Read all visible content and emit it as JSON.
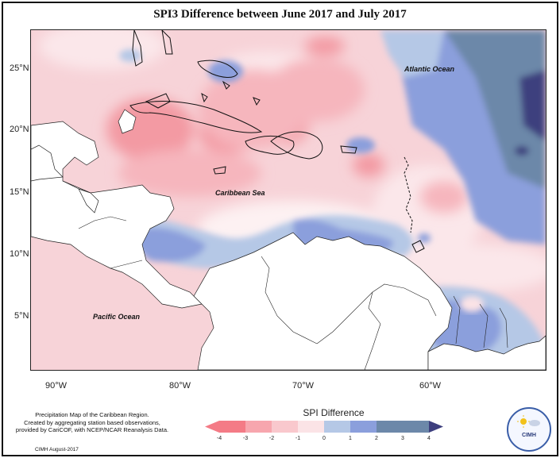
{
  "title": "SPI3 Difference between June 2017 and July 2017",
  "lat_labels": [
    "25°N",
    "20°N",
    "15°N",
    "10°N",
    "5°N"
  ],
  "lon_labels": [
    "90°W",
    "80°W",
    "70°W",
    "60°W"
  ],
  "ocean_labels": {
    "atlantic": "Atlantic Ocean",
    "caribbean": "Caribbean Sea",
    "pacific": "Pacific Ocean"
  },
  "footer": {
    "line1": "Precipitation Map of the Caribbean Region.",
    "line2": "Created by aggregating station based observations,",
    "line3": "provided by CariCOF, with NCEP/NCAR Reanalysis Data.",
    "date": "CIMH August-2017"
  },
  "legend": {
    "title": "SPI Difference",
    "ticks": [
      "-4",
      "-3",
      "-2",
      "-1",
      "0",
      "1",
      "2",
      "3",
      "4"
    ],
    "colors": [
      "#f47b86",
      "#f7a6ae",
      "#f9c8cd",
      "#fbe3e6",
      "#dbe6ef",
      "#b5c8e6",
      "#8b9fdc",
      "#6c88a9",
      "#3d3f7e"
    ]
  },
  "logo": {
    "text": "CIMH"
  }
}
